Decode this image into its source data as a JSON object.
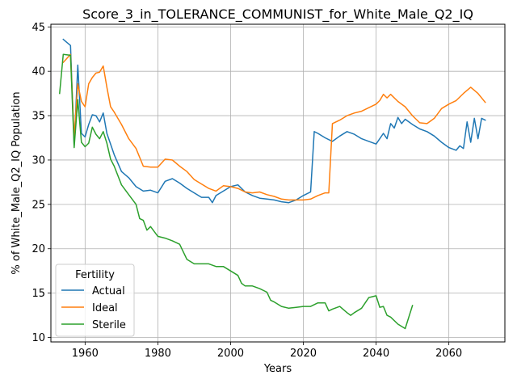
{
  "chart_data": {
    "type": "line",
    "title": "Score_3_in_TOLERANCE_COMMUNIST_for_White_Male_Q2_IQ",
    "xlabel": "Years",
    "ylabel": "% of White_Male_Q2_IQ Population",
    "xlim": [
      1950.6,
      2075.4
    ],
    "ylim": [
      9.5,
      45.3
    ],
    "xticks": [
      1960,
      1980,
      2000,
      2020,
      2040,
      2060
    ],
    "yticks": [
      10,
      15,
      20,
      25,
      30,
      35,
      40,
      45
    ],
    "grid": true,
    "legend": {
      "title": "Fertility",
      "placement": "lower left"
    },
    "series": [
      {
        "name": "Actual",
        "color": "#1f77b4",
        "x": [
          1954,
          1956,
          1957,
          1958,
          1959,
          1960,
          1961,
          1962,
          1963,
          1964,
          1965,
          1966,
          1968,
          1970,
          1972,
          1974,
          1976,
          1978,
          1980,
          1982,
          1984,
          1986,
          1988,
          1990,
          1992,
          1994,
          1995,
          1996,
          1998,
          2000,
          2002,
          2004,
          2006,
          2008,
          2010,
          2012,
          2014,
          2016,
          2018,
          2020,
          2022,
          2023,
          2024,
          2026,
          2028,
          2030,
          2032,
          2034,
          2036,
          2038,
          2040,
          2042,
          2043,
          2044,
          2045,
          2046,
          2047,
          2048,
          2050,
          2052,
          2054,
          2056,
          2058,
          2060,
          2062,
          2063,
          2064,
          2065,
          2066,
          2067,
          2068,
          2069,
          2070
        ],
        "y": [
          43.6,
          42.9,
          31.6,
          40.7,
          33.0,
          32.6,
          34.0,
          35.1,
          35.0,
          34.3,
          35.3,
          33.0,
          30.6,
          28.7,
          28.0,
          27.0,
          26.5,
          26.6,
          26.3,
          27.6,
          27.9,
          27.4,
          26.8,
          26.3,
          25.8,
          25.8,
          25.2,
          26.0,
          26.5,
          27.0,
          27.2,
          26.4,
          26.0,
          25.7,
          25.6,
          25.5,
          25.3,
          25.2,
          25.5,
          26.0,
          26.4,
          33.2,
          33.0,
          32.5,
          32.1,
          32.7,
          33.2,
          32.9,
          32.4,
          32.1,
          31.8,
          33.0,
          32.4,
          34.1,
          33.6,
          34.8,
          34.1,
          34.6,
          34.0,
          33.5,
          33.2,
          32.7,
          32.0,
          31.4,
          31.1,
          31.6,
          31.3,
          34.3,
          32.0,
          34.7,
          32.4,
          34.7,
          34.5
        ]
      },
      {
        "name": "Ideal",
        "color": "#ff7f0e",
        "x": [
          1954,
          1956,
          1957,
          1958,
          1959,
          1960,
          1961,
          1962,
          1963,
          1964,
          1965,
          1966,
          1967,
          1968,
          1970,
          1972,
          1974,
          1976,
          1978,
          1980,
          1982,
          1984,
          1986,
          1988,
          1990,
          1992,
          1994,
          1996,
          1998,
          2000,
          2002,
          2004,
          2006,
          2008,
          2010,
          2012,
          2014,
          2016,
          2018,
          2020,
          2022,
          2024,
          2026,
          2027,
          2028,
          2030,
          2032,
          2034,
          2036,
          2038,
          2040,
          2041,
          2042,
          2043,
          2044,
          2046,
          2048,
          2050,
          2052,
          2054,
          2056,
          2058,
          2060,
          2062,
          2064,
          2066,
          2068,
          2070
        ],
        "y": [
          41.0,
          41.9,
          32.5,
          38.6,
          36.6,
          36.0,
          38.6,
          39.3,
          39.8,
          39.9,
          40.6,
          38.2,
          36.0,
          35.4,
          34.0,
          32.4,
          31.3,
          29.3,
          29.2,
          29.2,
          30.1,
          30.0,
          29.3,
          28.7,
          27.8,
          27.3,
          26.8,
          26.5,
          27.1,
          27.0,
          26.8,
          26.4,
          26.3,
          26.4,
          26.1,
          25.9,
          25.6,
          25.5,
          25.5,
          25.5,
          25.6,
          26.0,
          26.3,
          26.3,
          34.1,
          34.5,
          35.0,
          35.3,
          35.5,
          35.9,
          36.3,
          36.7,
          37.4,
          37.0,
          37.4,
          36.6,
          36.0,
          35.0,
          34.2,
          34.1,
          34.7,
          35.8,
          36.3,
          36.7,
          37.5,
          38.2,
          37.5,
          36.5
        ]
      },
      {
        "name": "Sterile",
        "color": "#2ca02c",
        "x": [
          1953,
          1954,
          1956,
          1957,
          1958,
          1959,
          1960,
          1961,
          1962,
          1963,
          1964,
          1965,
          1966,
          1967,
          1968,
          1970,
          1972,
          1974,
          1975,
          1976,
          1977,
          1978,
          1980,
          1982,
          1984,
          1986,
          1988,
          1990,
          1992,
          1994,
          1996,
          1998,
          2000,
          2002,
          2003,
          2004,
          2006,
          2008,
          2010,
          2011,
          2012,
          2014,
          2016,
          2018,
          2020,
          2022,
          2024,
          2026,
          2027,
          2028,
          2030,
          2032,
          2033,
          2034,
          2036,
          2038,
          2040,
          2041,
          2042,
          2043,
          2044,
          2046,
          2048,
          2050
        ],
        "y": [
          37.5,
          41.9,
          41.8,
          31.4,
          36.8,
          32.0,
          31.5,
          31.9,
          33.7,
          32.9,
          32.4,
          33.2,
          31.9,
          30.1,
          29.3,
          27.2,
          26.1,
          25.0,
          23.4,
          23.2,
          22.1,
          22.5,
          21.4,
          21.2,
          20.9,
          20.5,
          18.8,
          18.3,
          18.3,
          18.3,
          18.0,
          18.0,
          17.5,
          17.0,
          16.1,
          15.8,
          15.8,
          15.5,
          15.1,
          14.2,
          14.0,
          13.5,
          13.3,
          13.4,
          13.5,
          13.5,
          13.9,
          13.9,
          13.0,
          13.2,
          13.5,
          12.8,
          12.5,
          12.8,
          13.3,
          14.5,
          14.7,
          13.4,
          13.5,
          12.5,
          12.3,
          11.5,
          11.0,
          13.6
        ]
      }
    ]
  }
}
